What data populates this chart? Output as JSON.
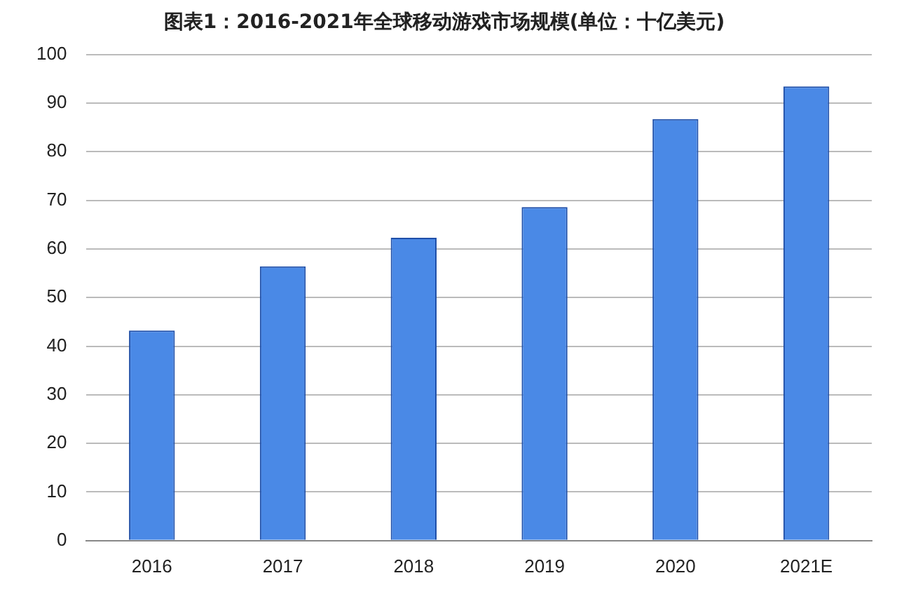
{
  "chart_data": {
    "type": "bar",
    "title": "图表1：2016-2021年全球移动游戏市场规模(单位：十亿美元)",
    "categories": [
      "2016",
      "2017",
      "2018",
      "2019",
      "2020",
      "2021E"
    ],
    "values": [
      43.2,
      56.4,
      62.3,
      68.6,
      86.7,
      93.4
    ],
    "color": "#4a89e6",
    "ylim": [
      0,
      100
    ],
    "yticks": [
      0,
      10,
      20,
      30,
      40,
      50,
      60,
      70,
      80,
      90,
      100
    ],
    "grid": "y",
    "legend": false
  }
}
